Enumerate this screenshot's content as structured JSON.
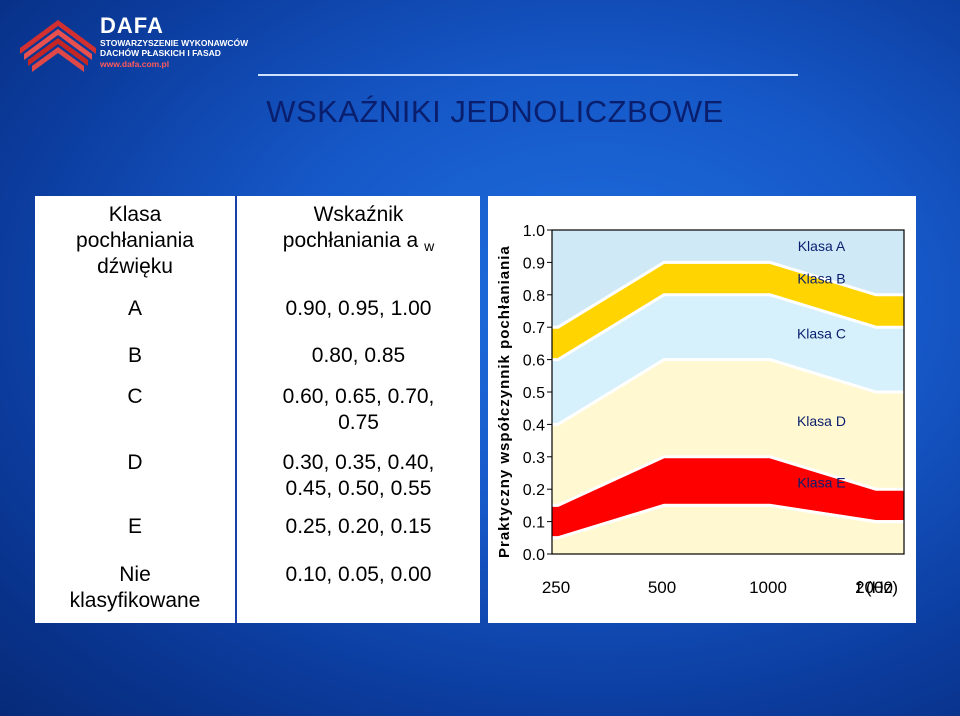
{
  "header": {
    "brand_name": "DAFA",
    "brand_sub_1": "STOWARZYSZENIE WYKONAWCÓW",
    "brand_sub_2": "DACHÓW PŁASKICH I FASAD",
    "brand_url": "www.dafa.com.pl",
    "title": "WSKAŹNIKI JEDNOLICZBOWE"
  },
  "table": {
    "col1_header": [
      "Klasa",
      "pochłaniania",
      "dźwięku"
    ],
    "col2_header": [
      "Wskaźnik",
      "pochłaniania a"
    ],
    "col2_header_sub": "w",
    "rows": [
      {
        "cls": "A",
        "values": [
          "0.90,  0.95, 1.00"
        ]
      },
      {
        "cls": "B",
        "values": [
          "0.80, 0.85"
        ]
      },
      {
        "cls": "C",
        "values": [
          "0.60, 0.65, 0.70,",
          "0.75"
        ]
      },
      {
        "cls": "D",
        "values": [
          "0.30, 0.35, 0.40,",
          "0.45, 0.50, 0.55"
        ]
      },
      {
        "cls": "E",
        "values": [
          "0.25, 0.20, 0.15"
        ]
      },
      {
        "cls_lines": [
          "Nie",
          "klasyfikowane"
        ],
        "values": [
          "0.10, 0.05, 0.00"
        ]
      }
    ]
  },
  "chart_data": {
    "type": "area",
    "ylabel": "Praktyczny współczynnik pochłaniania",
    "xlabel": "f (Hz)",
    "x": [
      250,
      500,
      1000,
      2000
    ],
    "xtick_labels": [
      "250",
      "500",
      "1000",
      "2000"
    ],
    "ylim": [
      0.0,
      1.0
    ],
    "ytick_labels": [
      "0.0",
      "0.1",
      "0.2",
      "0.3",
      "0.4",
      "0.5",
      "0.6",
      "0.7",
      "0.8",
      "0.9",
      "1.0"
    ],
    "grid": false,
    "bands": [
      {
        "name": "Klasa A",
        "color": "#cfe9f7",
        "upper": [
          1.0,
          1.0,
          1.0,
          1.0
        ],
        "lower": [
          0.7,
          0.9,
          0.9,
          0.8
        ]
      },
      {
        "name": "Klasa B",
        "color": "#ffd400",
        "upper": [
          0.7,
          0.9,
          0.9,
          0.8
        ],
        "lower": [
          0.6,
          0.8,
          0.8,
          0.7
        ]
      },
      {
        "name": "Klasa C",
        "color": "#d6f1fb",
        "upper": [
          0.6,
          0.8,
          0.8,
          0.7
        ],
        "lower": [
          0.4,
          0.6,
          0.6,
          0.5
        ]
      },
      {
        "name": "Klasa D",
        "color": "#fff8d0",
        "upper": [
          0.4,
          0.6,
          0.6,
          0.5
        ],
        "lower": [
          0.15,
          0.3,
          0.3,
          0.2
        ]
      },
      {
        "name": "Klasa E",
        "color": "#ff0000",
        "upper": [
          0.15,
          0.3,
          0.3,
          0.2
        ],
        "lower": [
          0.05,
          0.15,
          0.15,
          0.1
        ]
      },
      {
        "name": "",
        "color": "#fff8d0",
        "upper": [
          0.05,
          0.15,
          0.15,
          0.1
        ],
        "lower": [
          0.0,
          0.0,
          0.0,
          0.0
        ]
      }
    ],
    "band_labels": [
      {
        "text": "Klasa A",
        "x": 1400,
        "y": 0.95
      },
      {
        "text": "Klasa B",
        "x": 1400,
        "y": 0.85
      },
      {
        "text": "Klasa C",
        "x": 1400,
        "y": 0.68
      },
      {
        "text": "Klasa D",
        "x": 1400,
        "y": 0.41
      },
      {
        "text": "Klasa E",
        "x": 1400,
        "y": 0.22
      }
    ]
  }
}
